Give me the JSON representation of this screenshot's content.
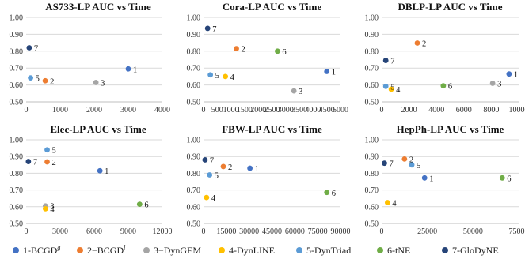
{
  "chart_data": [
    {
      "type": "scatter",
      "title": "AS733-LP AUC vs Time",
      "xlim": [
        0,
        4000
      ],
      "ylim": [
        0.5,
        1.0
      ],
      "xticks": [
        "0",
        "1000",
        "2000",
        "3000",
        "4000"
      ],
      "yticks": [
        "0.50",
        "0.60",
        "0.70",
        "0.80",
        "0.90",
        "1.00"
      ],
      "points": [
        {
          "label": "1",
          "method": 0,
          "x": 3000,
          "y": 0.695
        },
        {
          "label": "2",
          "method": 1,
          "x": 560,
          "y": 0.625
        },
        {
          "label": "3",
          "method": 2,
          "x": 2050,
          "y": 0.615
        },
        {
          "label": "5",
          "method": 4,
          "x": 130,
          "y": 0.642
        },
        {
          "label": "7",
          "method": 6,
          "x": 90,
          "y": 0.82
        }
      ]
    },
    {
      "type": "scatter",
      "title": "Cora-LP AUC vs Time",
      "xlim": [
        0,
        5000
      ],
      "ylim": [
        0.5,
        1.0
      ],
      "xticks": [
        "0",
        "500",
        "1000",
        "1500",
        "2000",
        "2500",
        "3000",
        "3500",
        "4000",
        "4500",
        "5000"
      ],
      "yticks": [
        "0.50",
        "0.60",
        "0.70",
        "0.80",
        "0.90",
        "1.00"
      ],
      "points": [
        {
          "label": "1",
          "method": 0,
          "x": 4500,
          "y": 0.68
        },
        {
          "label": "2",
          "method": 1,
          "x": 1200,
          "y": 0.815
        },
        {
          "label": "3",
          "method": 2,
          "x": 3300,
          "y": 0.565
        },
        {
          "label": "4",
          "method": 3,
          "x": 800,
          "y": 0.65
        },
        {
          "label": "5",
          "method": 4,
          "x": 250,
          "y": 0.66
        },
        {
          "label": "6",
          "method": 5,
          "x": 2700,
          "y": 0.8
        },
        {
          "label": "7",
          "method": 6,
          "x": 150,
          "y": 0.935
        }
      ]
    },
    {
      "type": "scatter",
      "title": "DBLP-LP AUC vs Time",
      "xlim": [
        0,
        10000
      ],
      "ylim": [
        0.5,
        1.0
      ],
      "xticks": [
        "0",
        "2000",
        "4000",
        "6000",
        "8000",
        "10000"
      ],
      "yticks": [
        "0.50",
        "0.60",
        "0.70",
        "0.80",
        "0.90",
        "1.00"
      ],
      "points": [
        {
          "label": "1",
          "method": 0,
          "x": 9300,
          "y": 0.665
        },
        {
          "label": "2",
          "method": 1,
          "x": 2600,
          "y": 0.848
        },
        {
          "label": "3",
          "method": 2,
          "x": 8100,
          "y": 0.61
        },
        {
          "label": "4",
          "method": 3,
          "x": 700,
          "y": 0.575
        },
        {
          "label": "5",
          "method": 4,
          "x": 300,
          "y": 0.592
        },
        {
          "label": "6",
          "method": 5,
          "x": 4500,
          "y": 0.595
        },
        {
          "label": "7",
          "method": 6,
          "x": 300,
          "y": 0.745
        }
      ]
    },
    {
      "type": "scatter",
      "title": "Elec-LP AUC vs Time",
      "xlim": [
        0,
        12000
      ],
      "ylim": [
        0.5,
        1.0
      ],
      "xticks": [
        "0",
        "3000",
        "6000",
        "9000",
        "12000"
      ],
      "yticks": [
        "0.50",
        "0.60",
        "0.70",
        "0.80",
        "0.90",
        "1.00"
      ],
      "points": [
        {
          "label": "1",
          "method": 0,
          "x": 6500,
          "y": 0.815
        },
        {
          "label": "2",
          "method": 1,
          "x": 1850,
          "y": 0.868
        },
        {
          "label": "3",
          "method": 2,
          "x": 1700,
          "y": 0.605
        },
        {
          "label": "4",
          "method": 3,
          "x": 1700,
          "y": 0.588
        },
        {
          "label": "5",
          "method": 4,
          "x": 1850,
          "y": 0.94
        },
        {
          "label": "6",
          "method": 5,
          "x": 10000,
          "y": 0.615
        },
        {
          "label": "7",
          "method": 6,
          "x": 200,
          "y": 0.87
        }
      ]
    },
    {
      "type": "scatter",
      "title": "FBW-LP AUC vs Time",
      "xlim": [
        0,
        90000
      ],
      "ylim": [
        0.5,
        1.0
      ],
      "xticks": [
        "0",
        "15000",
        "30000",
        "45000",
        "60000",
        "75000",
        "90000"
      ],
      "yticks": [
        "0.50",
        "0.60",
        "0.70",
        "0.80",
        "0.90",
        "1.00"
      ],
      "points": [
        {
          "label": "1",
          "method": 0,
          "x": 30500,
          "y": 0.83
        },
        {
          "label": "2",
          "method": 1,
          "x": 13000,
          "y": 0.84
        },
        {
          "label": "4",
          "method": 3,
          "x": 2000,
          "y": 0.655
        },
        {
          "label": "5",
          "method": 4,
          "x": 4000,
          "y": 0.79
        },
        {
          "label": "6",
          "method": 5,
          "x": 81000,
          "y": 0.685
        },
        {
          "label": "7",
          "method": 6,
          "x": 1000,
          "y": 0.88
        }
      ]
    },
    {
      "type": "scatter",
      "title": "HepPh-LP AUC vs Time",
      "xlim": [
        0,
        75000
      ],
      "ylim": [
        0.5,
        1.0
      ],
      "xticks": [
        "0",
        "25000",
        "50000",
        "75000"
      ],
      "yticks": [
        "0.50",
        "0.60",
        "0.70",
        "0.80",
        "0.90",
        "1.00"
      ],
      "points": [
        {
          "label": "1",
          "method": 0,
          "x": 23500,
          "y": 0.772
        },
        {
          "label": "2",
          "method": 1,
          "x": 12500,
          "y": 0.885
        },
        {
          "label": "4",
          "method": 3,
          "x": 3200,
          "y": 0.625
        },
        {
          "label": "5",
          "method": 4,
          "x": 16500,
          "y": 0.85
        },
        {
          "label": "6",
          "method": 5,
          "x": 66000,
          "y": 0.772
        },
        {
          "label": "7",
          "method": 6,
          "x": 1500,
          "y": 0.86
        }
      ]
    }
  ],
  "legend": [
    {
      "label": "1-BCGD",
      "sup": "g",
      "color": "#4472C4"
    },
    {
      "label": "2−BCGD",
      "sup": "l",
      "color": "#ED7D31"
    },
    {
      "label": "3−DynGEM",
      "sup": "",
      "color": "#A5A5A5"
    },
    {
      "label": "4-DynLINE",
      "sup": "",
      "color": "#FFC000"
    },
    {
      "label": "5-DynTriad",
      "sup": "",
      "color": "#5B9BD5"
    },
    {
      "label": "6-tNE",
      "sup": "",
      "color": "#70AD47"
    },
    {
      "label": "7-GloDyNE",
      "sup": "",
      "color": "#264478"
    }
  ]
}
